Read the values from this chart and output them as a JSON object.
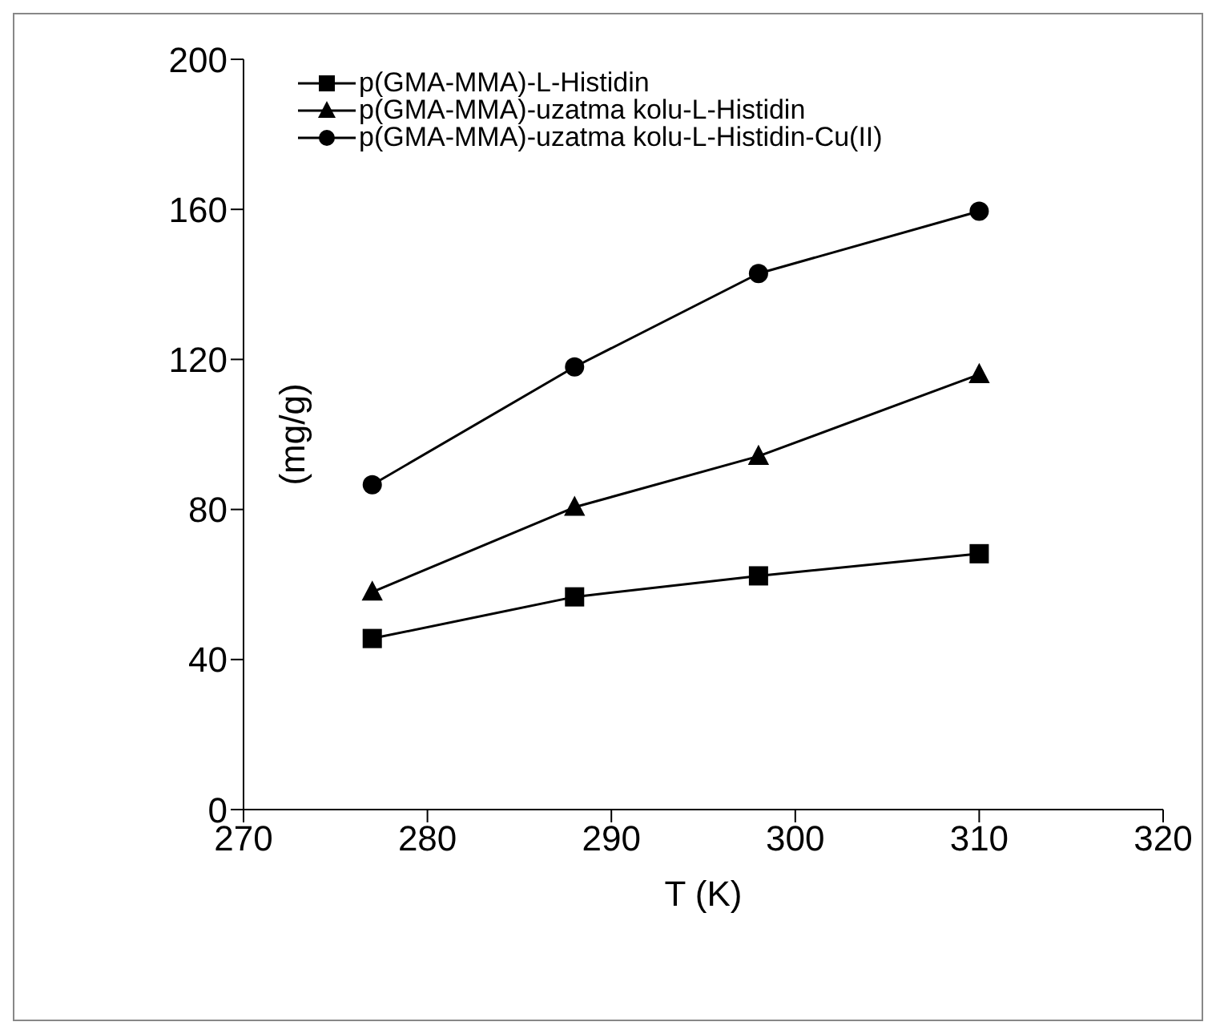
{
  "chart_data": {
    "type": "line",
    "xlabel": "T (K)",
    "ylabel": "(mg/g)",
    "xlim": [
      270,
      320
    ],
    "xticks": [
      270,
      280,
      290,
      300,
      310,
      320
    ],
    "ylim": [
      0,
      200
    ],
    "yticks": [
      0,
      40,
      80,
      120,
      160,
      200
    ],
    "grid": false,
    "legend": "top left",
    "line_style": "solid",
    "series": [
      {
        "name": "p(GMA-MMA)-L-Histidin",
        "color": "#000000",
        "marker": "square",
        "x": [
          277,
          288,
          298,
          310
        ],
        "values": [
          45.6,
          56.7,
          62.3,
          68.2
        ]
      },
      {
        "name": "p(GMA-MMA)-uzatma kolu-L-Histidin",
        "color": "#000000",
        "marker": "triangle",
        "x": [
          277,
          288,
          298,
          310
        ],
        "values": [
          58,
          80.6,
          94.2,
          116
        ]
      },
      {
        "name": "p(GMA-MMA)-uzatma kolu-L-Histidin-Cu(II)",
        "color": "#000000",
        "marker": "circle",
        "x": [
          277,
          288,
          298,
          310
        ],
        "values": [
          86.6,
          118,
          142.9,
          159.5
        ]
      }
    ]
  }
}
